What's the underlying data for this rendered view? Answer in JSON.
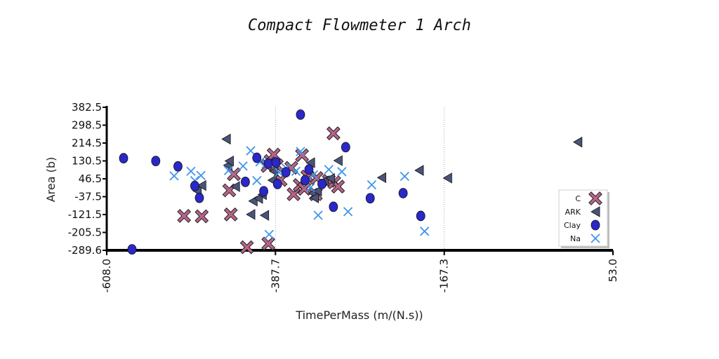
{
  "chart_data": {
    "type": "scatter",
    "title": "Compact Flowmeter 1 Arch",
    "xlabel": "TimePerMass (m/(N.s))",
    "ylabel": "Area (b)",
    "xlim": [
      -608.0,
      53.0
    ],
    "ylim": [
      -289.6,
      382.5
    ],
    "xticks": [
      "-608.0",
      "-387.7",
      "-167.3",
      "53.0"
    ],
    "yticks": [
      "382.5",
      "298.5",
      "214.5",
      "130.5",
      "46.5",
      "-37.5",
      "-121.5",
      "-205.5",
      "-289.6"
    ],
    "grid": "vertical dotted",
    "legend_position": "bottom-right",
    "series": [
      {
        "name": "C",
        "marker": "x-filled",
        "color": "#b8648a",
        "points": [
          [
            -507,
            -128
          ],
          [
            -484,
            -130
          ],
          [
            -448,
            -8
          ],
          [
            -442,
            68
          ],
          [
            -446,
            -121
          ],
          [
            -425,
            -275
          ],
          [
            -398,
            107
          ],
          [
            -394,
            130
          ],
          [
            -390,
            160
          ],
          [
            -386,
            109
          ],
          [
            -381,
            41
          ],
          [
            -367,
            98
          ],
          [
            -364,
            -26
          ],
          [
            -356,
            17
          ],
          [
            -353,
            157
          ],
          [
            -350,
            -1
          ],
          [
            -346,
            57
          ],
          [
            -335,
            -26
          ],
          [
            -334,
            50
          ],
          [
            -318,
            37
          ],
          [
            -312,
            260
          ],
          [
            -311,
            30
          ],
          [
            -306,
            10
          ],
          [
            -397,
            -258
          ]
        ]
      },
      {
        "name": "ARK",
        "marker": "triangle-left",
        "color": "#4a5478",
        "points": [
          [
            -490,
            -10
          ],
          [
            -484,
            15
          ],
          [
            -452,
            233
          ],
          [
            -450,
            110
          ],
          [
            -448,
            130
          ],
          [
            -440,
            10
          ],
          [
            -420,
            -121
          ],
          [
            -417,
            -58
          ],
          [
            -410,
            -46
          ],
          [
            -405,
            -28
          ],
          [
            -402,
            -125
          ],
          [
            -390,
            82
          ],
          [
            -392,
            40
          ],
          [
            -342,
            122
          ],
          [
            -339,
            -21
          ],
          [
            -337,
            -43
          ],
          [
            -333,
            -11
          ],
          [
            -324,
            37
          ],
          [
            -316,
            48
          ],
          [
            -306,
            132
          ],
          [
            -249,
            52
          ],
          [
            -200,
            86
          ],
          [
            -163,
            50
          ],
          [
            7,
            219
          ]
        ]
      },
      {
        "name": "Clay",
        "marker": "circle",
        "color": "#2a28c8",
        "points": [
          [
            -586,
            143
          ],
          [
            -575,
            -285
          ],
          [
            -544,
            130
          ],
          [
            -515,
            105
          ],
          [
            -493,
            13
          ],
          [
            -487,
            -43
          ],
          [
            -427,
            32
          ],
          [
            -412,
            145
          ],
          [
            -403,
            -12
          ],
          [
            -397,
            118
          ],
          [
            -387,
            123
          ],
          [
            -385,
            22
          ],
          [
            -374,
            77
          ],
          [
            -355,
            348
          ],
          [
            -349,
            40
          ],
          [
            -344,
            90
          ],
          [
            -327,
            22
          ],
          [
            -312,
            -85
          ],
          [
            -296,
            195
          ],
          [
            -264,
            -45
          ],
          [
            -221,
            -21
          ],
          [
            -198,
            -128
          ]
        ]
      },
      {
        "name": "Na",
        "marker": "x-line",
        "color": "#3f96ea",
        "points": [
          [
            -520,
            60
          ],
          [
            -498,
            82
          ],
          [
            -493,
            38
          ],
          [
            -485,
            62
          ],
          [
            -449,
            85
          ],
          [
            -430,
            106
          ],
          [
            -420,
            178
          ],
          [
            -412,
            38
          ],
          [
            -408,
            126
          ],
          [
            -400,
            115
          ],
          [
            -396,
            -215
          ],
          [
            -383,
            77
          ],
          [
            -374,
            98
          ],
          [
            -361,
            82
          ],
          [
            -355,
            175
          ],
          [
            -342,
            5
          ],
          [
            -338,
            65
          ],
          [
            -332,
            -125
          ],
          [
            -318,
            90
          ],
          [
            -301,
            80
          ],
          [
            -293,
            -108
          ],
          [
            -262,
            18
          ],
          [
            -219,
            58
          ],
          [
            -193,
            -200
          ]
        ]
      }
    ]
  }
}
